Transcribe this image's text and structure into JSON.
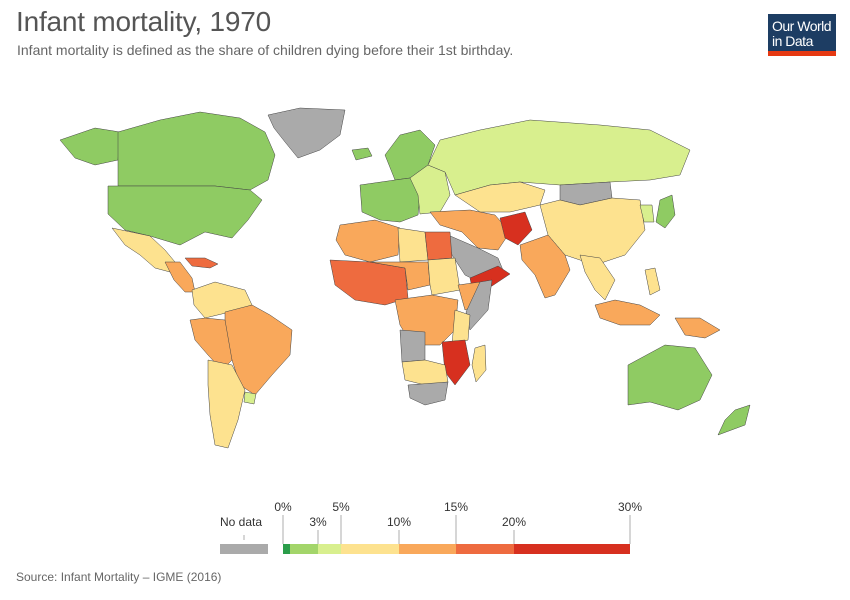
{
  "header": {
    "title": "Infant mortality, 1970",
    "subtitle": "Infant mortality is defined as the share of children dying before their 1st birthday."
  },
  "logo": {
    "line1": "Our World",
    "line2": "in Data",
    "bg": "#1d3d63",
    "accent": "#e63912"
  },
  "legend": {
    "no_data_label": "No data",
    "no_data_color": "#aaaaaa",
    "bins": [
      {
        "from": "0%",
        "to": "3%",
        "color": "#2a9d4a"
      },
      {
        "from": "3%",
        "to": "5%",
        "color": "#a3d56a"
      },
      {
        "from": "5%",
        "to": "10%",
        "color": "#d8ef8e"
      },
      {
        "from": "10%",
        "to": "15%",
        "color": "#fde28f"
      },
      {
        "from": "15%",
        "to": "20%",
        "color": "#f9a85b"
      },
      {
        "from": "20%",
        "to": "30%",
        "color": "#ee6b3f"
      }
    ],
    "ticks": [
      "0%",
      "3%",
      "5%",
      "10%",
      "15%",
      "20%",
      "30%"
    ]
  },
  "colors": {
    "b1": "#8fcb63",
    "b2": "#d8ef8e",
    "b3": "#fde28f",
    "b4": "#f9a85b",
    "b5": "#ee6b3f",
    "b6": "#d7301f",
    "nodata": "#aaaaaa"
  },
  "regions": [
    {
      "name": "canada",
      "bin": "b1"
    },
    {
      "name": "usa",
      "bin": "b1"
    },
    {
      "name": "alaska",
      "bin": "b1"
    },
    {
      "name": "greenland",
      "bin": "nodata"
    },
    {
      "name": "mexico",
      "bin": "b3"
    },
    {
      "name": "central-america",
      "bin": "b4"
    },
    {
      "name": "caribbean",
      "bin": "b5"
    },
    {
      "name": "colombia-venezuela",
      "bin": "b3"
    },
    {
      "name": "brazil",
      "bin": "b4"
    },
    {
      "name": "peru-bolivia",
      "bin": "b4"
    },
    {
      "name": "argentina-chile",
      "bin": "b3"
    },
    {
      "name": "uruguay",
      "bin": "b2"
    },
    {
      "name": "iceland",
      "bin": "b1"
    },
    {
      "name": "scandinavia",
      "bin": "b1"
    },
    {
      "name": "western-europe",
      "bin": "b1"
    },
    {
      "name": "eastern-europe",
      "bin": "b2"
    },
    {
      "name": "russia",
      "bin": "b2"
    },
    {
      "name": "turkey-iran",
      "bin": "b4"
    },
    {
      "name": "afghanistan",
      "bin": "b6"
    },
    {
      "name": "arabia",
      "bin": "nodata"
    },
    {
      "name": "yemen",
      "bin": "b6"
    },
    {
      "name": "central-asia",
      "bin": "b3"
    },
    {
      "name": "mongolia",
      "bin": "nodata"
    },
    {
      "name": "china",
      "bin": "b3"
    },
    {
      "name": "korea",
      "bin": "b2"
    },
    {
      "name": "japan",
      "bin": "b1"
    },
    {
      "name": "india",
      "bin": "b4"
    },
    {
      "name": "southeast-asia",
      "bin": "b3"
    },
    {
      "name": "indonesia",
      "bin": "b4"
    },
    {
      "name": "philippines",
      "bin": "b3"
    },
    {
      "name": "png",
      "bin": "b4"
    },
    {
      "name": "australia",
      "bin": "b1"
    },
    {
      "name": "new-zealand",
      "bin": "b1"
    },
    {
      "name": "north-africa",
      "bin": "b4"
    },
    {
      "name": "egypt",
      "bin": "b5"
    },
    {
      "name": "libya",
      "bin": "b3"
    },
    {
      "name": "west-africa",
      "bin": "b5"
    },
    {
      "name": "sahel",
      "bin": "b4"
    },
    {
      "name": "sudan",
      "bin": "b3"
    },
    {
      "name": "ethiopia",
      "bin": "b4"
    },
    {
      "name": "somalia",
      "bin": "nodata"
    },
    {
      "name": "central-africa",
      "bin": "b4"
    },
    {
      "name": "east-africa",
      "bin": "b3"
    },
    {
      "name": "malawi-mozambique",
      "bin": "b6"
    },
    {
      "name": "angola",
      "bin": "nodata"
    },
    {
      "name": "southern-africa",
      "bin": "b3"
    },
    {
      "name": "south-africa",
      "bin": "nodata"
    },
    {
      "name": "madagascar",
      "bin": "b3"
    }
  ],
  "footer": {
    "source": "Source: Infant Mortality – IGME (2016)"
  }
}
